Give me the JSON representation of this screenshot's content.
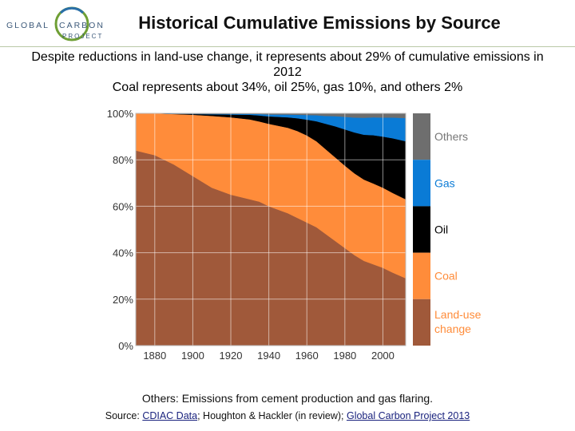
{
  "header": {
    "logo_line1_left": "GLOBAL",
    "logo_line1_right": "CARBON",
    "logo_line2": "PROJECT",
    "title": "Historical Cumulative Emissions by Source"
  },
  "subtitle": {
    "line1": "Despite reductions in land-use change, it represents about 29% of cumulative emissions in 2012",
    "line2": "Coal represents about 34%, oil 25%, gas 10%, and others 2%"
  },
  "chart_data": {
    "type": "area",
    "stacked": true,
    "normalized": true,
    "title": "",
    "xlabel": "",
    "ylabel": "",
    "xlim": [
      1870,
      2012
    ],
    "ylim": [
      0,
      100
    ],
    "x_ticks": [
      1880,
      1900,
      1920,
      1940,
      1960,
      1980,
      2000
    ],
    "y_ticks": [
      "0%",
      "20%",
      "40%",
      "60%",
      "80%",
      "100%"
    ],
    "grid": true,
    "legend_placement": "right",
    "x": [
      1870,
      1875,
      1880,
      1890,
      1900,
      1910,
      1920,
      1930,
      1935,
      1940,
      1950,
      1955,
      1960,
      1965,
      1970,
      1975,
      1980,
      1985,
      1990,
      1995,
      2000,
      2005,
      2012
    ],
    "series": [
      {
        "name": "Land-use change",
        "color": "#a0593a",
        "values": [
          84,
          83,
          82,
          78,
          73,
          68,
          65,
          63,
          62,
          60,
          57,
          55,
          53,
          51,
          48,
          45,
          42,
          39,
          36.5,
          35,
          33.5,
          31.5,
          29
        ]
      },
      {
        "name": "Coal",
        "color": "#ff8c3a",
        "values": [
          16,
          17,
          18,
          21.7,
          26.4,
          30.9,
          33.3,
          34.4,
          34.5,
          35.5,
          36.8,
          37.4,
          37.5,
          37,
          36.5,
          36,
          35.5,
          35.2,
          35,
          34.8,
          34.5,
          34.3,
          34
        ]
      },
      {
        "name": "Oil",
        "color": "#000000",
        "values": [
          0,
          0,
          0,
          0.1,
          0.3,
          0.7,
          1.2,
          2,
          2.6,
          3.2,
          4.5,
          5.5,
          6.8,
          8.6,
          11,
          13.4,
          15.6,
          17.6,
          19.3,
          20.8,
          22,
          23.5,
          25
        ]
      },
      {
        "name": "Gas",
        "color": "#0a7bd6",
        "values": [
          0,
          0,
          0,
          0,
          0.1,
          0.2,
          0.3,
          0.4,
          0.6,
          0.8,
          1.2,
          1.5,
          2,
          2.6,
          3.4,
          4.4,
          5.4,
          6.4,
          7.3,
          7.7,
          8.2,
          8.9,
          10
        ]
      },
      {
        "name": "Others",
        "color": "#6e6e6e",
        "values": [
          0,
          0,
          0,
          0.2,
          0.2,
          0.2,
          0.2,
          0.2,
          0.3,
          0.5,
          0.5,
          0.6,
          0.7,
          0.8,
          1.1,
          1.2,
          1.5,
          1.8,
          1.9,
          1.7,
          1.8,
          1.8,
          2
        ]
      }
    ],
    "legend": [
      {
        "key": "others",
        "label": "Others",
        "color": "#6e6e6e",
        "text_color": "#777777"
      },
      {
        "key": "gas",
        "label": "Gas",
        "color": "#0a7bd6",
        "text_color": "#0a7bd6"
      },
      {
        "key": "oil",
        "label": "Oil",
        "color": "#000000",
        "text_color": "#000000"
      },
      {
        "key": "coal",
        "label": "Coal",
        "color": "#ff8c3a",
        "text_color": "#ff8c3a"
      },
      {
        "key": "landuse",
        "label_lines": [
          "Land-use",
          "change"
        ],
        "color": "#a0593a",
        "text_color": "#ff8c3a"
      }
    ]
  },
  "footnote": "Others: Emissions from cement production and gas flaring.",
  "source": {
    "prefix": "Source: ",
    "link1": "CDIAC Data",
    "middle": "; Houghton & Hackler (in review); ",
    "link2": "Global Carbon Project 2013"
  }
}
